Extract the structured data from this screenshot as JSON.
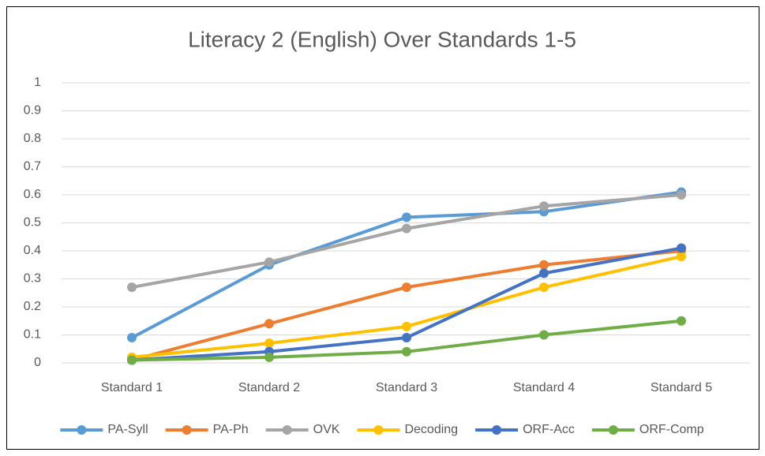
{
  "chart_data": {
    "type": "line",
    "title": "Literacy 2 (English) Over Standards 1-5",
    "categories": [
      "Standard 1",
      "Standard 2",
      "Standard 3",
      "Standard 4",
      "Standard 5"
    ],
    "series": [
      {
        "name": "PA-Syll",
        "color": "#5b9bd5",
        "values": [
          0.09,
          0.35,
          0.52,
          0.54,
          0.61
        ]
      },
      {
        "name": "PA-Ph",
        "color": "#ed7d31",
        "values": [
          0.01,
          0.14,
          0.27,
          0.35,
          0.4
        ]
      },
      {
        "name": "OVK",
        "color": "#a5a5a5",
        "values": [
          0.27,
          0.36,
          0.48,
          0.56,
          0.6
        ]
      },
      {
        "name": "Decoding",
        "color": "#ffc000",
        "values": [
          0.02,
          0.07,
          0.13,
          0.27,
          0.38
        ]
      },
      {
        "name": "ORF-Acc",
        "color": "#4472c4",
        "values": [
          0.01,
          0.04,
          0.09,
          0.32,
          0.41
        ]
      },
      {
        "name": "ORF-Comp",
        "color": "#70ad47",
        "values": [
          0.01,
          0.02,
          0.04,
          0.1,
          0.15
        ]
      }
    ],
    "ylim": [
      0,
      1
    ],
    "yticks": [
      0,
      0.1,
      0.2,
      0.3,
      0.4,
      0.5,
      0.6,
      0.7,
      0.8,
      0.9,
      1
    ],
    "grid": true,
    "legend": "bottom"
  }
}
